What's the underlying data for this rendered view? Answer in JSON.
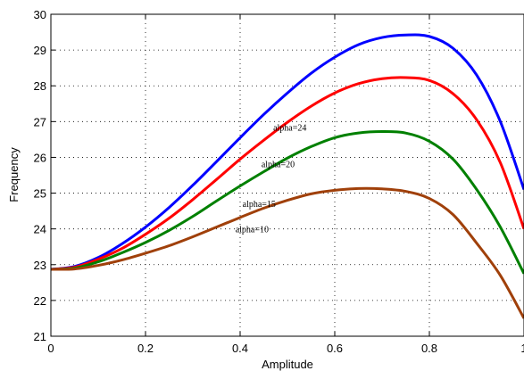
{
  "chart_data": {
    "type": "line",
    "title": "",
    "xlabel": "Amplitude",
    "ylabel": "Frequency",
    "xlim": [
      0,
      1
    ],
    "ylim": [
      21,
      30
    ],
    "xticks": [
      0,
      0.2,
      0.4,
      0.6,
      0.8,
      1
    ],
    "yticks": [
      21,
      22,
      23,
      24,
      25,
      26,
      27,
      28,
      29,
      30
    ],
    "grid": true,
    "x": [
      0,
      0.05,
      0.1,
      0.15,
      0.2,
      0.25,
      0.3,
      0.35,
      0.4,
      0.45,
      0.5,
      0.55,
      0.6,
      0.65,
      0.7,
      0.75,
      0.8,
      0.85,
      0.9,
      0.95,
      1.0
    ],
    "series": [
      {
        "color": "#0000ff",
        "values": [
          22.87,
          22.95,
          23.2,
          23.58,
          24.05,
          24.6,
          25.22,
          25.88,
          26.55,
          27.2,
          27.8,
          28.35,
          28.8,
          29.15,
          29.35,
          29.42,
          29.38,
          29.05,
          28.3,
          27.0,
          25.1
        ]
      },
      {
        "color": "#ff0000",
        "values": [
          22.87,
          22.93,
          23.15,
          23.45,
          23.85,
          24.3,
          24.82,
          25.38,
          25.95,
          26.48,
          26.98,
          27.43,
          27.8,
          28.06,
          28.2,
          28.23,
          28.15,
          27.78,
          27.05,
          25.85,
          24.0
        ]
      },
      {
        "color": "#008000",
        "values": [
          22.87,
          22.9,
          23.08,
          23.33,
          23.62,
          23.96,
          24.35,
          24.78,
          25.2,
          25.6,
          25.98,
          26.3,
          26.55,
          26.68,
          26.72,
          26.68,
          26.45,
          25.95,
          25.1,
          24.05,
          22.75
        ]
      },
      {
        "color": "#a0400a",
        "values": [
          22.87,
          22.88,
          22.98,
          23.13,
          23.32,
          23.53,
          23.78,
          24.05,
          24.32,
          24.58,
          24.8,
          24.98,
          25.08,
          25.13,
          25.12,
          25.05,
          24.85,
          24.4,
          23.6,
          22.7,
          21.5
        ]
      }
    ],
    "annotations": [
      {
        "text": "alpha=24",
        "x": 0.47,
        "y": 26.85
      },
      {
        "text": "alpha=20",
        "x": 0.445,
        "y": 25.82
      },
      {
        "text": "alpha=15",
        "x": 0.405,
        "y": 24.72
      },
      {
        "text": "alpha=10",
        "x": 0.39,
        "y": 24.0
      }
    ]
  }
}
